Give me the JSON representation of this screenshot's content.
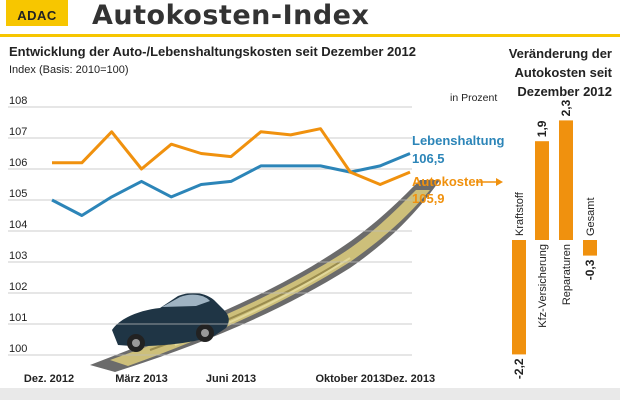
{
  "header": {
    "logo_text": "ADAC",
    "title": "Autokosten-Index"
  },
  "colors": {
    "lebenshaltung": "#2c85b8",
    "autokosten": "#f0910e",
    "bars": "#f0910e",
    "brand": "#f7c600"
  },
  "chart_data": [
    {
      "type": "line",
      "title": "Entwicklung der Auto-/Lebenshaltungskosten seit Dezember 2012",
      "subtitle": "Index (Basis: 2010=100)",
      "x_tick_labels": [
        "Dez. 2012",
        "März 2013",
        "Juni 2013",
        "Oktober 2013",
        "Dez. 2013"
      ],
      "x": [
        "Dez. 2012",
        "Jan. 2013",
        "Feb. 2013",
        "März 2013",
        "Apr. 2013",
        "Mai 2013",
        "Juni 2013",
        "Juli 2013",
        "Aug. 2013",
        "Sep. 2013",
        "Okt. 2013",
        "Nov. 2013",
        "Dez. 2013"
      ],
      "ylim": [
        100,
        108
      ],
      "y_ticks": [
        100,
        101,
        102,
        103,
        104,
        105,
        106,
        107,
        108
      ],
      "grid": true,
      "series": [
        {
          "name": "Lebenshaltung",
          "values": [
            105.0,
            104.5,
            105.1,
            105.6,
            105.1,
            105.5,
            105.6,
            106.1,
            106.1,
            106.1,
            105.9,
            106.1,
            106.5
          ],
          "end_label": "106,5"
        },
        {
          "name": "Autokosten",
          "values": [
            106.2,
            106.2,
            107.2,
            106.0,
            106.8,
            106.5,
            106.4,
            107.2,
            107.1,
            107.3,
            105.9,
            105.5,
            105.9
          ],
          "end_label": "105,9"
        }
      ]
    },
    {
      "type": "bar",
      "title": "Veränderung der Autokosten seit Dezember 2012",
      "unit_label": "in Prozent",
      "categories": [
        "Kraftstoff",
        "Kfz-Versicherung",
        "Reparaturen",
        "Gesamt"
      ],
      "values": [
        -2.2,
        1.9,
        2.3,
        -0.3
      ],
      "value_labels": [
        "-2,2",
        "1,9",
        "2,3",
        "-0,3"
      ]
    }
  ]
}
